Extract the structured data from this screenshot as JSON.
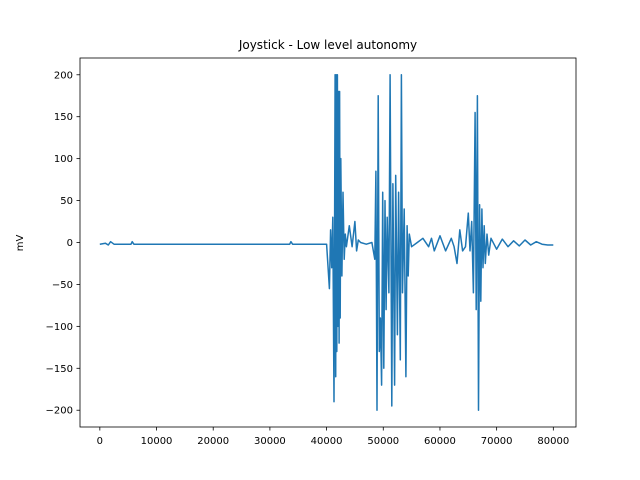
{
  "chart_data": {
    "type": "line",
    "title": "Joystick - Low level autonomy",
    "xlabel": "",
    "ylabel": "mV",
    "xlim": [
      -3500,
      84000
    ],
    "ylim": [
      -220,
      220
    ],
    "xticks": [
      0,
      10000,
      20000,
      30000,
      40000,
      50000,
      60000,
      70000,
      80000
    ],
    "xtick_labels": [
      "0",
      "10000",
      "20000",
      "30000",
      "40000",
      "50000",
      "60000",
      "70000",
      "80000"
    ],
    "yticks": [
      -200,
      -150,
      -100,
      -50,
      0,
      50,
      100,
      150,
      200
    ],
    "ytick_labels": [
      "−200",
      "−150",
      "−100",
      "−50",
      "0",
      "50",
      "100",
      "150",
      "200"
    ],
    "grid": false,
    "series": [
      {
        "color": "#1f77b4",
        "x": [
          0,
          1000,
          1500,
          1900,
          2500,
          5500,
          5700,
          6000,
          10000,
          20000,
          30000,
          33500,
          33700,
          34000,
          40000,
          40500,
          40700,
          40900,
          41100,
          41300,
          41500,
          41600,
          41700,
          41800,
          41900,
          42000,
          42100,
          42200,
          42300,
          42400,
          42500,
          42700,
          42900,
          43100,
          43300,
          43500,
          44000,
          44500,
          45000,
          45300,
          45600,
          46000,
          47000,
          48000,
          48500,
          48700,
          48900,
          49100,
          49300,
          49500,
          49700,
          49900,
          50100,
          50300,
          50500,
          50700,
          51000,
          51200,
          51500,
          51700,
          52000,
          52200,
          52500,
          52700,
          53000,
          53200,
          53400,
          53700,
          54000,
          54200,
          54400,
          54600,
          55000,
          56000,
          57000,
          58000,
          58500,
          59000,
          60000,
          61000,
          62000,
          62500,
          63000,
          63500,
          64000,
          64500,
          65000,
          65300,
          65600,
          65900,
          66200,
          66400,
          66600,
          66800,
          67000,
          67200,
          67400,
          67600,
          67800,
          68000,
          68300,
          68600,
          69000,
          70000,
          71000,
          72000,
          73000,
          74000,
          75000,
          76000,
          77000,
          78000,
          79000,
          80000
        ],
        "y": [
          -2,
          -1,
          -3,
          1,
          -2,
          -2,
          1,
          -2,
          -2,
          -2,
          -2,
          -2,
          1,
          -2,
          -2,
          -55,
          15,
          -30,
          30,
          -190,
          200,
          -160,
          200,
          -130,
          200,
          -100,
          180,
          -120,
          180,
          -90,
          100,
          -40,
          60,
          -20,
          10,
          -5,
          20,
          -5,
          25,
          -10,
          3,
          0,
          -2,
          0,
          -20,
          85,
          -200,
          175,
          -130,
          -90,
          -170,
          60,
          -150,
          50,
          -80,
          30,
          -60,
          200,
          -195,
          70,
          -170,
          80,
          -110,
          60,
          -140,
          200,
          -60,
          40,
          -160,
          20,
          -40,
          10,
          -5,
          0,
          5,
          -5,
          5,
          -10,
          8,
          -10,
          5,
          -5,
          -25,
          15,
          -10,
          -5,
          35,
          -10,
          25,
          -60,
          155,
          -80,
          175,
          -200,
          45,
          -70,
          40,
          -30,
          20,
          -25,
          10,
          -15,
          5,
          -8,
          4,
          -5,
          2,
          -4,
          3,
          -3,
          1,
          -2,
          -3,
          -3
        ]
      }
    ]
  }
}
